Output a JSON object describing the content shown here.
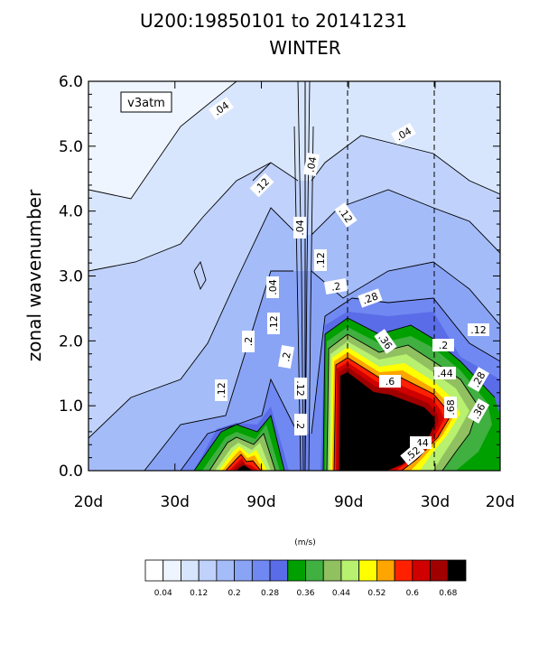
{
  "chart_data": {
    "type": "contour",
    "title": "U200:19850101 to 20141231",
    "subtitle": "WINTER",
    "ylabel": "zonal wavenumber",
    "xlabel": "",
    "x_tick_labels": [
      "20d",
      "30d",
      "90d",
      "90d",
      "30d",
      "20d"
    ],
    "y_ticks": [
      0.0,
      1.0,
      2.0,
      3.0,
      4.0,
      5.0,
      6.0
    ],
    "y_tick_labels": [
      "0.0",
      "1.0",
      "2.0",
      "3.0",
      "4.0",
      "5.0",
      "6.0"
    ],
    "ylim": [
      0,
      6
    ],
    "dashed_vlines_at_tick_index": [
      3,
      4
    ],
    "legend_box_text": "v3atm",
    "contour_line_labels": [
      ".04",
      ".04",
      ".04",
      ".04",
      ".04",
      ".12",
      ".12",
      ".12",
      ".12",
      ".12",
      ".12",
      ".12",
      ".2",
      ".2",
      ".2",
      ".2",
      ".2",
      ".28",
      ".28",
      ".36",
      ".36",
      ".44",
      ".44",
      ".52",
      ".6",
      ".68"
    ],
    "colorbar": {
      "units": "(m/s)",
      "levels": [
        0.04,
        0.08,
        0.12,
        0.16,
        0.2,
        0.24,
        0.28,
        0.32,
        0.36,
        0.4,
        0.44,
        0.48,
        0.52,
        0.56,
        0.6,
        0.64,
        0.68
      ],
      "labels": [
        "0.04",
        "0.12",
        "0.2",
        "0.28",
        "0.36",
        "0.44",
        "0.52",
        "0.6",
        "0.68"
      ],
      "colors": [
        "#ffffff",
        "#eef5ff",
        "#d8e6fd",
        "#c0d2fb",
        "#a4bcf8",
        "#8aa4f5",
        "#7088f1",
        "#5a6ce8",
        "#00a000",
        "#40b040",
        "#90c060",
        "#b8f070",
        "#ffff00",
        "#ffa500",
        "#ff2000",
        "#d00000",
        "#a00000",
        "#000000"
      ]
    }
  }
}
